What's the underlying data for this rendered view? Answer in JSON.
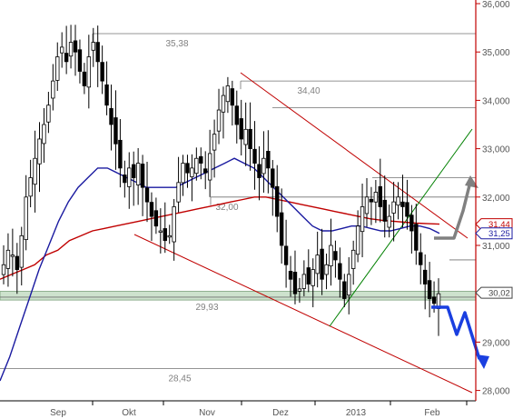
{
  "chart_data": {
    "type": "line",
    "subtype": "candlestick price chart with technical analysis",
    "title": "",
    "xlabel": "",
    "ylabel": "",
    "ylim": [
      27.9,
      36.1
    ],
    "grid": false,
    "legend": "none",
    "x_ticks": [
      "Sep",
      "Okt",
      "Nov",
      "Dez",
      "2013",
      "Feb"
    ],
    "y_ticks": [
      {
        "label": "28,000",
        "value": 28
      },
      {
        "label": "29,000",
        "value": 29
      },
      {
        "label": "30,000",
        "value": 30
      },
      {
        "label": "31,000",
        "value": 31
      },
      {
        "label": "32,000",
        "value": 32
      },
      {
        "label": "33,000",
        "value": 33
      },
      {
        "label": "34,000",
        "value": 34
      },
      {
        "label": "35,000",
        "value": 35
      },
      {
        "label": "36,000",
        "value": 36
      }
    ],
    "price_badges": [
      {
        "label": "31,44",
        "value": 31.44,
        "color": "#c00000"
      },
      {
        "label": "31,25",
        "value": 31.25,
        "color": "#1a1aa0"
      },
      {
        "label": "30,02",
        "value": 30.02,
        "color": "#444444"
      }
    ],
    "levels": [
      {
        "label": "35,38",
        "value": 35.38
      },
      {
        "label": "34,40",
        "value": 34.4
      },
      {
        "label": "32,00",
        "value": 32.0
      },
      {
        "label": "29,93",
        "value": 29.93
      },
      {
        "label": "28,45",
        "value": 28.45
      }
    ],
    "extra_levels": [
      33.85,
      32.4,
      30.7
    ],
    "support_zone": [
      29.87,
      30.05
    ],
    "series": [
      {
        "name": "",
        "kind": "candles",
        "color": "#000000",
        "values": [
          30.6,
          30.9,
          30.8,
          30.5,
          31.2,
          32.0,
          32.4,
          32.8,
          33.2,
          33.5,
          33.9,
          34.4,
          34.9,
          35.1,
          34.8,
          35.2,
          35.0,
          34.6,
          34.3,
          34.9,
          35.2,
          34.8,
          34.4,
          33.9,
          33.5,
          33.1,
          32.6,
          32.3,
          32.6,
          32.4,
          32.7,
          32.2,
          31.9,
          31.6,
          31.4,
          31.3,
          31.1,
          31.2,
          31.8,
          32.3,
          32.7,
          32.5,
          32.6,
          32.8,
          32.7,
          32.5,
          32.9,
          33.3,
          33.8,
          34.1,
          34.3,
          33.9,
          33.5,
          33.2,
          33.4,
          33.0,
          32.7,
          32.4,
          32.8,
          32.6,
          32.2,
          31.6,
          31.0,
          30.6,
          30.3,
          30.0,
          30.1,
          30.4,
          30.2,
          30.5,
          30.8,
          30.3,
          30.6,
          31.0,
          30.7,
          30.3,
          29.9,
          30.4,
          30.9,
          31.4,
          31.8,
          32.0,
          31.9,
          32.1,
          31.8,
          31.5,
          31.6,
          31.9,
          32.0,
          31.8,
          31.6,
          31.3,
          30.9,
          30.6,
          30.2,
          29.9,
          29.8,
          30.0
        ]
      },
      {
        "name": "",
        "kind": "moving-average",
        "color": "#1a1aa0",
        "values": [
          28.2,
          28.7,
          29.3,
          29.9,
          30.5,
          31.0,
          31.5,
          31.9,
          32.2,
          32.4,
          32.6,
          32.6,
          32.5,
          32.4,
          32.3,
          32.2,
          32.2,
          32.2,
          32.2,
          32.3,
          32.4,
          32.5,
          32.6,
          32.7,
          32.8,
          32.7,
          32.6,
          32.4,
          32.2,
          32.0,
          31.8,
          31.6,
          31.4,
          31.3,
          31.3,
          31.35,
          31.4,
          31.4,
          31.35,
          31.3,
          31.3,
          31.35,
          31.4,
          31.4,
          31.35,
          31.25
        ]
      },
      {
        "name": "",
        "kind": "moving-average",
        "color": "#c00000",
        "values": [
          30.3,
          30.4,
          30.5,
          30.6,
          30.8,
          30.9,
          31.1,
          31.2,
          31.3,
          31.35,
          31.4,
          31.45,
          31.5,
          31.55,
          31.6,
          31.65,
          31.7,
          31.75,
          31.8,
          31.85,
          31.9,
          31.95,
          32.0,
          32.0,
          31.95,
          31.9,
          31.85,
          31.8,
          31.75,
          31.7,
          31.65,
          31.6,
          31.55,
          31.52,
          31.5,
          31.48,
          31.46,
          31.45,
          31.44
        ]
      }
    ],
    "annotations": [
      {
        "kind": "downtrend channel (upper)",
        "color": "#c00000"
      },
      {
        "kind": "downtrend channel (lower)",
        "color": "#c00000"
      },
      {
        "kind": "uptrend line",
        "color": "#008000"
      },
      {
        "kind": "scenario arrow up",
        "color": "#808080"
      },
      {
        "kind": "scenario arrow down",
        "color": "#1a3fe0"
      }
    ]
  }
}
